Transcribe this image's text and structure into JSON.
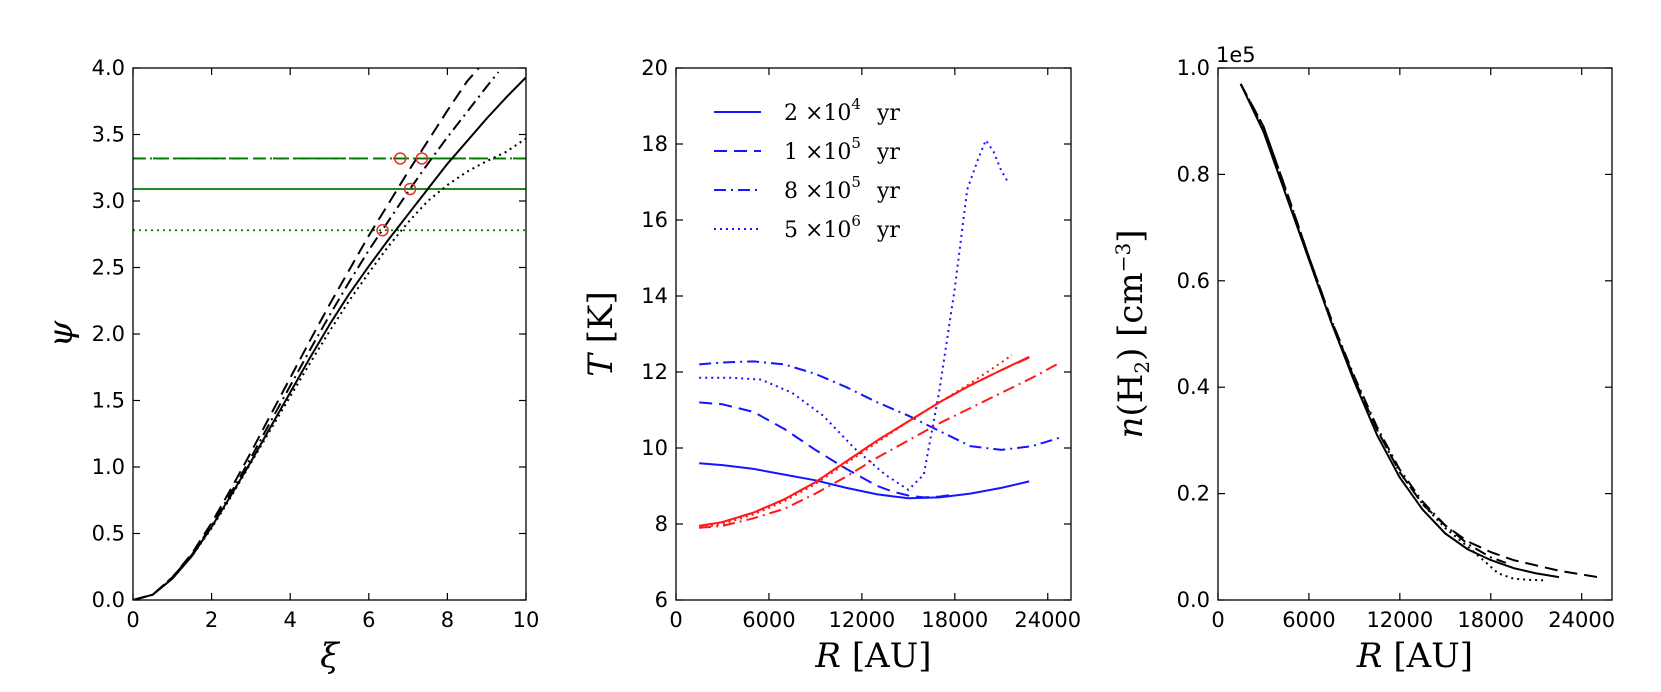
{
  "chart_data": [
    {
      "type": "line",
      "xlabel": "ξ",
      "ylabel": "ψ",
      "xlim": [
        0,
        10
      ],
      "ylim": [
        0,
        4
      ],
      "xticks": [
        "0",
        "2",
        "4",
        "6",
        "8",
        "10"
      ],
      "yticks": [
        "0.0",
        "0.5",
        "1.0",
        "1.5",
        "2.0",
        "2.5",
        "3.0",
        "3.5",
        "4.0"
      ],
      "grid": false,
      "series": [
        {
          "style": "solid",
          "color": "#000000",
          "x": [
            0,
            0.5,
            1,
            1.5,
            2,
            2.5,
            3,
            3.5,
            4,
            4.5,
            5,
            5.5,
            6,
            6.5,
            7,
            7.5,
            8,
            8.5,
            9,
            9.5,
            10
          ],
          "y": [
            0,
            0.04,
            0.16,
            0.33,
            0.55,
            0.79,
            1.04,
            1.3,
            1.56,
            1.82,
            2.07,
            2.3,
            2.51,
            2.71,
            2.9,
            3.09,
            3.28,
            3.45,
            3.62,
            3.78,
            3.93
          ]
        },
        {
          "style": "dashed",
          "color": "#000000",
          "x": [
            0,
            0.5,
            1,
            1.5,
            2,
            2.5,
            3,
            3.5,
            4,
            4.5,
            5,
            5.5,
            6,
            6.5,
            7,
            7.5,
            8,
            8.5,
            8.8
          ],
          "y": [
            0,
            0.04,
            0.17,
            0.35,
            0.58,
            0.84,
            1.11,
            1.39,
            1.67,
            1.95,
            2.22,
            2.48,
            2.74,
            2.98,
            3.22,
            3.45,
            3.68,
            3.9,
            4.0
          ]
        },
        {
          "style": "dashdot",
          "color": "#000000",
          "x": [
            0,
            0.5,
            1,
            1.5,
            2,
            2.5,
            3,
            3.5,
            4,
            4.5,
            5,
            5.5,
            6,
            6.5,
            7,
            7.5,
            8,
            8.5,
            9,
            9.3
          ],
          "y": [
            0,
            0.04,
            0.17,
            0.34,
            0.56,
            0.81,
            1.07,
            1.34,
            1.61,
            1.88,
            2.14,
            2.39,
            2.63,
            2.85,
            3.07,
            3.28,
            3.48,
            3.67,
            3.86,
            3.97
          ]
        },
        {
          "style": "dotted",
          "color": "#000000",
          "x": [
            0,
            0.5,
            1,
            1.5,
            2,
            2.5,
            3,
            3.5,
            4,
            4.5,
            5,
            5.5,
            6,
            6.5,
            7,
            7.5,
            8,
            8.5,
            9,
            9.5,
            10
          ],
          "y": [
            0,
            0.04,
            0.16,
            0.33,
            0.54,
            0.78,
            1.03,
            1.28,
            1.53,
            1.78,
            2.02,
            2.25,
            2.46,
            2.66,
            2.84,
            3.0,
            3.12,
            3.22,
            3.3,
            3.37,
            3.47
          ]
        }
      ],
      "hlines": [
        {
          "y": 3.09,
          "style": "solid",
          "color": "#007700"
        },
        {
          "y": 3.32,
          "style": "dashed",
          "color": "#007700"
        },
        {
          "y": 3.32,
          "style": "dashdot",
          "color": "#007700"
        },
        {
          "y": 2.78,
          "style": "dotted",
          "color": "#007700"
        }
      ],
      "markers": [
        {
          "x": 6.35,
          "y": 2.78,
          "color": "#e8302a"
        },
        {
          "x": 6.8,
          "y": 3.32,
          "color": "#e8302a"
        },
        {
          "x": 7.05,
          "y": 3.09,
          "color": "#e8302a"
        },
        {
          "x": 7.35,
          "y": 3.32,
          "color": "#e8302a"
        }
      ]
    },
    {
      "type": "line",
      "xlabel": "R [AU]",
      "ylabel": "T [K]",
      "xlim": [
        0,
        25500
      ],
      "ylim": [
        6,
        20
      ],
      "xticks": [
        {
          "v": 0,
          "t": "0"
        },
        {
          "v": 6000,
          "t": "6000"
        },
        {
          "v": 12000,
          "t": "12000"
        },
        {
          "v": 18000,
          "t": "18000"
        },
        {
          "v": 24000,
          "t": "24000"
        }
      ],
      "yticks": [
        "6",
        "8",
        "10",
        "12",
        "14",
        "16",
        "18",
        "20"
      ],
      "grid": false,
      "legend": {
        "position": "top-left",
        "entries": [
          {
            "base": "2 ×10",
            "exp": "4",
            "unit": "yr",
            "style": "solid"
          },
          {
            "base": "1 ×10",
            "exp": "5",
            "unit": "yr",
            "style": "dashed"
          },
          {
            "base": "8 ×10",
            "exp": "5",
            "unit": "yr",
            "style": "dashdot"
          },
          {
            "base": "5 ×10",
            "exp": "6",
            "unit": "yr",
            "style": "dotted"
          }
        ]
      },
      "series": [
        {
          "style": "solid",
          "color": "#1515ff",
          "x": [
            1500,
            3000,
            5000,
            7000,
            9000,
            11000,
            13000,
            15000,
            17000,
            19000,
            21000,
            22800
          ],
          "y": [
            9.6,
            9.55,
            9.45,
            9.3,
            9.15,
            8.95,
            8.78,
            8.68,
            8.7,
            8.8,
            8.95,
            9.12
          ]
        },
        {
          "style": "dashed",
          "color": "#1515ff",
          "x": [
            1500,
            3000,
            5000,
            7000,
            9000,
            11000,
            13000,
            14000,
            15000,
            16000,
            17000,
            18000
          ],
          "y": [
            11.2,
            11.15,
            10.95,
            10.5,
            9.95,
            9.45,
            9.0,
            8.85,
            8.75,
            8.7,
            8.72,
            8.78
          ]
        },
        {
          "style": "dashdot",
          "color": "#1515ff",
          "x": [
            1500,
            3000,
            5000,
            7000,
            9000,
            11000,
            13000,
            15000,
            17000,
            19000,
            21000,
            23000,
            25000
          ],
          "y": [
            12.2,
            12.25,
            12.28,
            12.2,
            11.95,
            11.6,
            11.2,
            10.85,
            10.45,
            10.05,
            9.95,
            10.05,
            10.3
          ]
        },
        {
          "style": "dotted",
          "color": "#1515ff",
          "x": [
            1500,
            3500,
            5500,
            7500,
            9500,
            11500,
            13500,
            15000,
            16000,
            17000,
            18000,
            18800,
            19500,
            20000,
            20500,
            21000,
            21500
          ],
          "y": [
            11.85,
            11.85,
            11.8,
            11.45,
            10.85,
            10.0,
            9.3,
            8.9,
            9.3,
            11.5,
            14.2,
            16.8,
            17.6,
            18.1,
            17.8,
            17.3,
            16.95
          ]
        },
        {
          "style": "solid",
          "color": "#ff1a1a",
          "x": [
            1500,
            3000,
            5000,
            7000,
            9000,
            11000,
            13000,
            15000,
            17000,
            19000,
            21000,
            22800
          ],
          "y": [
            7.95,
            8.05,
            8.3,
            8.65,
            9.1,
            9.65,
            10.2,
            10.7,
            11.2,
            11.65,
            12.05,
            12.4
          ]
        },
        {
          "style": "dashed",
          "color": "#ff1a1a",
          "x": [
            1500,
            3000,
            5000,
            7000,
            9000,
            11000,
            13000,
            15000,
            17000,
            19000,
            21000,
            22800
          ],
          "y": [
            7.95,
            8.05,
            8.3,
            8.65,
            9.1,
            9.65,
            10.2,
            10.7,
            11.2,
            11.65,
            12.05,
            12.38
          ]
        },
        {
          "style": "dashdot",
          "color": "#ff1a1a",
          "x": [
            1500,
            3000,
            5000,
            7000,
            9000,
            11000,
            13000,
            15000,
            17000,
            19000,
            21000,
            23000,
            24800
          ],
          "y": [
            7.9,
            7.95,
            8.15,
            8.4,
            8.8,
            9.25,
            9.75,
            10.2,
            10.65,
            11.05,
            11.45,
            11.85,
            12.25
          ]
        },
        {
          "style": "dotted",
          "color": "#ff1a1a",
          "x": [
            1500,
            3000,
            5000,
            7000,
            9000,
            11000,
            13000,
            15000,
            17000,
            19000,
            21000,
            21700
          ],
          "y": [
            7.9,
            8.0,
            8.25,
            8.6,
            9.05,
            9.6,
            10.15,
            10.7,
            11.2,
            11.7,
            12.25,
            12.45
          ]
        }
      ]
    },
    {
      "type": "line",
      "xlabel": "R [AU]",
      "ylabel": "n(H2) [cm−3]",
      "ylabel_base": "n(H",
      "ylabel_sub": "2",
      "ylabel_mid": ") [cm",
      "ylabel_sup": "−3",
      "ylabel_end": "]",
      "offset_label": "1e5",
      "xlim": [
        0,
        26000
      ],
      "ylim": [
        0,
        1.0
      ],
      "xticks": [
        {
          "v": 0,
          "t": "0"
        },
        {
          "v": 6000,
          "t": "6000"
        },
        {
          "v": 12000,
          "t": "12000"
        },
        {
          "v": 18000,
          "t": "18000"
        },
        {
          "v": 24000,
          "t": "24000"
        }
      ],
      "yticks": [
        "0.0",
        "0.2",
        "0.4",
        "0.6",
        "0.8",
        "1.0"
      ],
      "grid": false,
      "series": [
        {
          "style": "solid",
          "color": "#000000",
          "x": [
            1500,
            3000,
            4500,
            6000,
            7500,
            9000,
            10500,
            12000,
            13500,
            15000,
            16500,
            18000,
            19500,
            21000,
            22500
          ],
          "y": [
            0.97,
            0.88,
            0.76,
            0.64,
            0.52,
            0.41,
            0.31,
            0.23,
            0.17,
            0.125,
            0.095,
            0.075,
            0.06,
            0.05,
            0.043
          ]
        },
        {
          "style": "dashed",
          "color": "#000000",
          "x": [
            1500,
            3000,
            4500,
            6000,
            7500,
            9000,
            10500,
            12000,
            13500,
            15000,
            16500,
            18000,
            19500,
            21000,
            22500,
            24000,
            25300
          ],
          "y": [
            0.97,
            0.89,
            0.77,
            0.645,
            0.525,
            0.415,
            0.32,
            0.24,
            0.18,
            0.14,
            0.11,
            0.09,
            0.075,
            0.065,
            0.055,
            0.048,
            0.042
          ]
        },
        {
          "style": "dashdot",
          "color": "#000000",
          "x": [
            1500,
            3000,
            4500,
            6000,
            7500,
            9000,
            10500,
            12000,
            13500,
            15000,
            16500,
            18000,
            19000
          ],
          "y": [
            0.97,
            0.89,
            0.77,
            0.645,
            0.525,
            0.42,
            0.325,
            0.245,
            0.185,
            0.14,
            0.105,
            0.08,
            0.07
          ]
        },
        {
          "style": "dotted",
          "color": "#000000",
          "x": [
            1500,
            3000,
            4500,
            6000,
            7500,
            9000,
            10500,
            12000,
            13500,
            15000,
            16500,
            17500,
            18500,
            19500,
            20500,
            21500
          ],
          "y": [
            0.97,
            0.885,
            0.765,
            0.64,
            0.52,
            0.415,
            0.32,
            0.24,
            0.18,
            0.135,
            0.1,
            0.075,
            0.05,
            0.04,
            0.038,
            0.037
          ]
        }
      ]
    }
  ]
}
